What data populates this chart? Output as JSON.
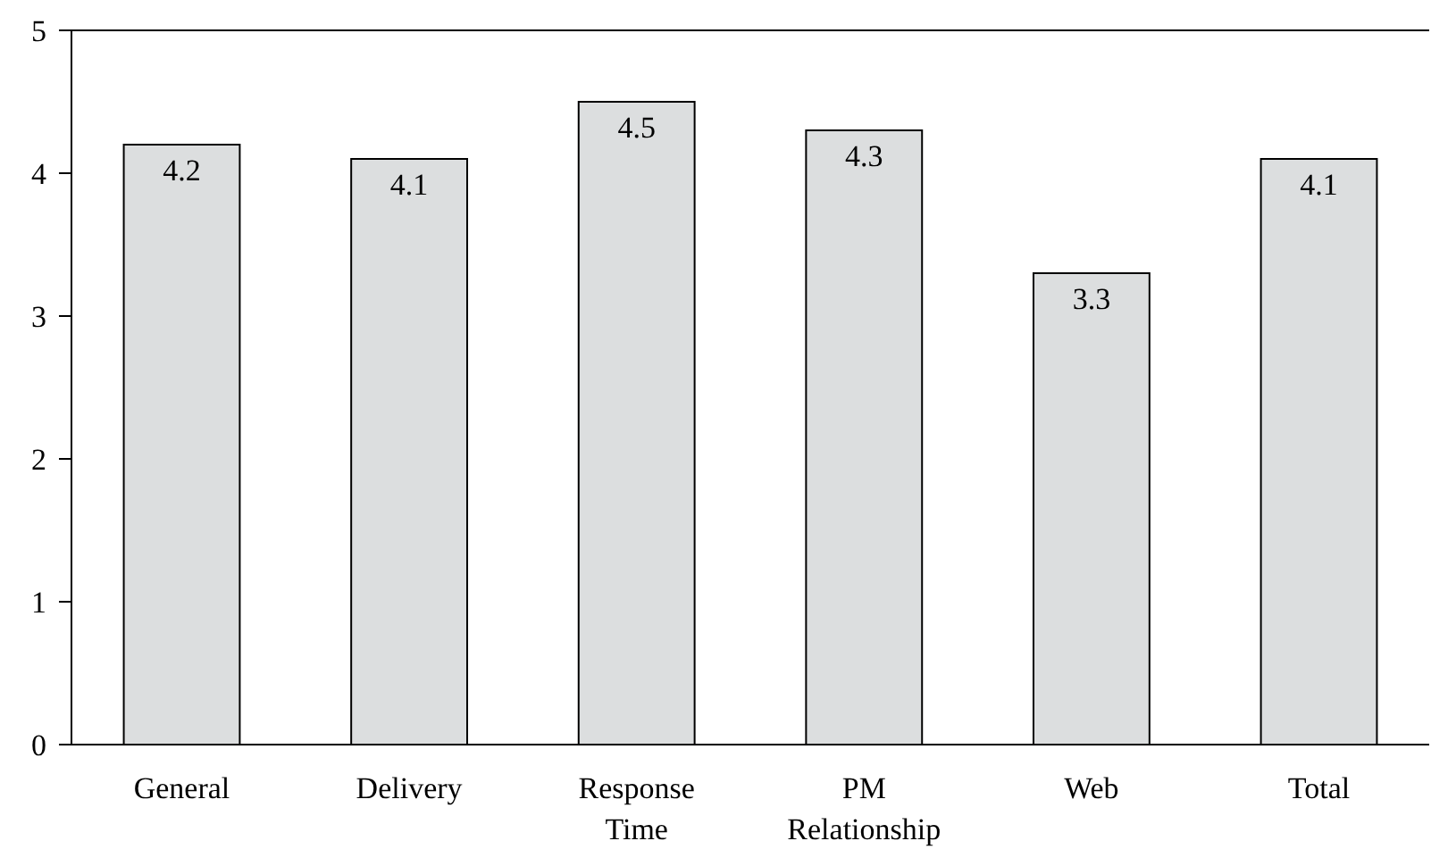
{
  "chart_data": {
    "type": "bar",
    "categories": [
      "General",
      "Delivery",
      "Response Time",
      "PM Relationship",
      "Web",
      "Total"
    ],
    "values": [
      4.2,
      4.1,
      4.5,
      4.3,
      3.3,
      4.1
    ],
    "color": "#dcdedf",
    "ylim": [
      0,
      5
    ],
    "yticks": [
      0,
      1,
      2,
      3,
      4,
      5
    ],
    "data_labels": true,
    "grid": false
  }
}
